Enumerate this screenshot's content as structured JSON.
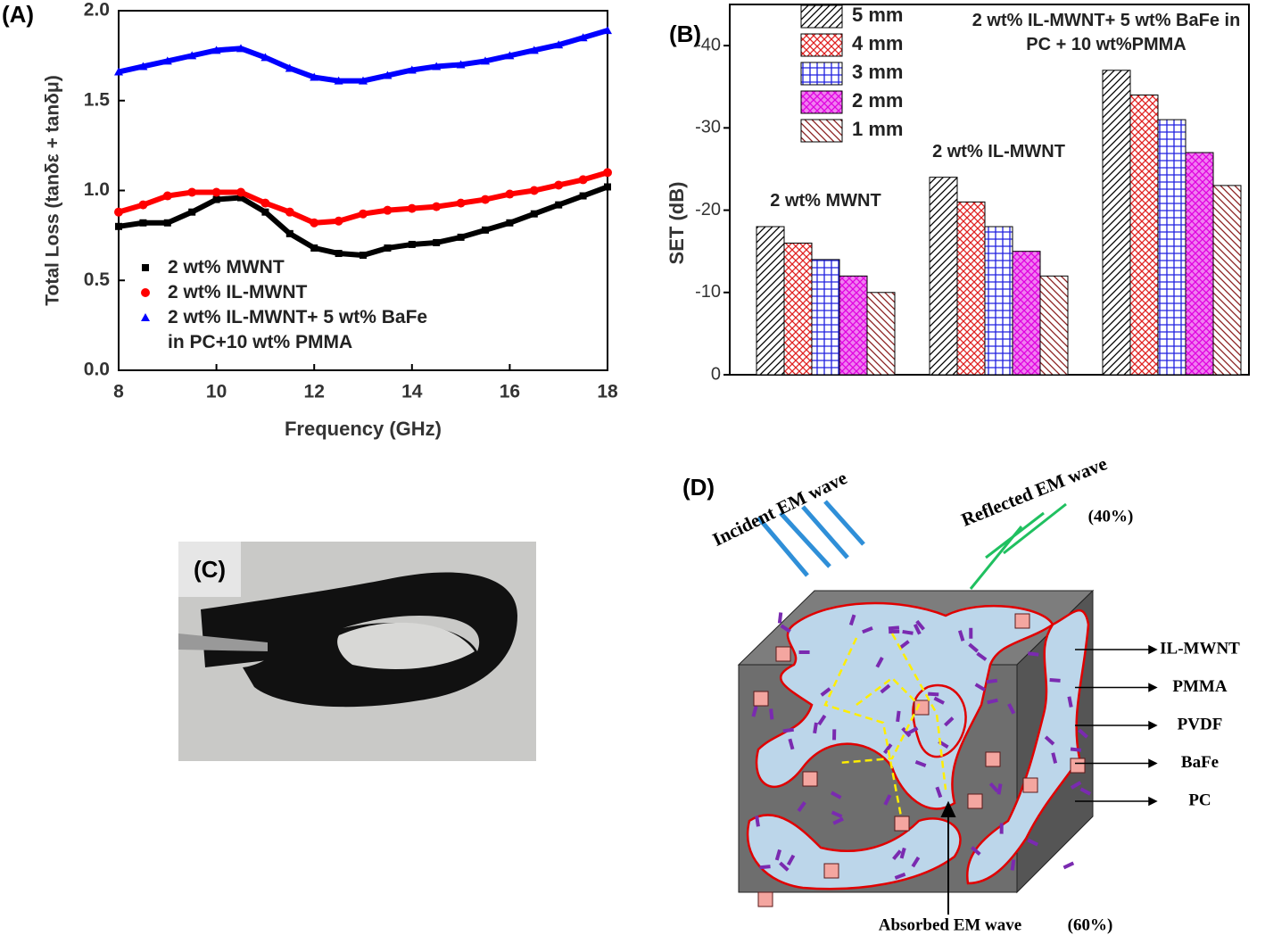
{
  "chart_data": [
    {
      "type": "line",
      "panel_label": "(A)",
      "x_label": "Frequency (GHz)",
      "y_label": "Total Loss (tanδε + tanδμ)",
      "x": [
        8,
        8.5,
        9,
        9.5,
        10,
        10.5,
        11,
        11.5,
        12,
        12.5,
        13,
        13.5,
        14,
        14.5,
        15,
        15.5,
        16,
        16.5,
        17,
        17.5,
        18
      ],
      "series": [
        {
          "name": "2 wt% MWNT",
          "color": "#000000",
          "marker": "square",
          "values": [
            0.8,
            0.82,
            0.82,
            0.88,
            0.95,
            0.96,
            0.88,
            0.76,
            0.68,
            0.65,
            0.64,
            0.68,
            0.7,
            0.71,
            0.74,
            0.78,
            0.82,
            0.87,
            0.92,
            0.97,
            1.02
          ]
        },
        {
          "name": "2 wt% IL-MWNT",
          "color": "#ff0000",
          "marker": "circle",
          "values": [
            0.88,
            0.92,
            0.97,
            0.99,
            0.99,
            0.99,
            0.93,
            0.88,
            0.82,
            0.83,
            0.87,
            0.89,
            0.9,
            0.91,
            0.93,
            0.95,
            0.98,
            1.0,
            1.03,
            1.06,
            1.1
          ]
        },
        {
          "name": "2 wt% IL-MWNT+ 5 wt% BaFe in PC+10 wt% PMMA",
          "color": "#0000ff",
          "marker": "triangle",
          "values": [
            1.66,
            1.69,
            1.72,
            1.75,
            1.78,
            1.79,
            1.74,
            1.68,
            1.63,
            1.61,
            1.61,
            1.64,
            1.67,
            1.69,
            1.7,
            1.72,
            1.75,
            1.78,
            1.81,
            1.85,
            1.89
          ]
        }
      ],
      "xlim": [
        8,
        18
      ],
      "xticks": [
        8,
        10,
        12,
        14,
        16,
        18
      ],
      "ylim": [
        0,
        2
      ],
      "yticks": [
        {
          "value": 0,
          "label": "0.0"
        },
        {
          "value": 0.5,
          "label": "0.5"
        },
        {
          "value": 1,
          "label": "1.0"
        },
        {
          "value": 1.5,
          "label": "1.5"
        },
        {
          "value": 2,
          "label": "2.0"
        }
      ]
    },
    {
      "type": "bar",
      "panel_label": "(B)",
      "y_label": "SET (dB)",
      "categories": [
        "2 wt% MWNT",
        "2 wt% IL-MWNT",
        "2 wt% IL-MWNT+ 5 wt% BaFe in PC + 10 wt%PMMA"
      ],
      "series": [
        {
          "name": "5 mm",
          "color": "#000000",
          "hatch": "diagonal",
          "values": [
            -18,
            -24,
            -37
          ]
        },
        {
          "name": "4 mm",
          "color": "#e02020",
          "hatch": "cross",
          "values": [
            -16,
            -21,
            -34
          ]
        },
        {
          "name": "3 mm",
          "color": "#2020e0",
          "hatch": "grid",
          "values": [
            -14,
            -18,
            -31
          ]
        },
        {
          "name": "2 mm",
          "color": "#e000e0",
          "hatch": "cross",
          "values": [
            -12,
            -15,
            -27
          ]
        },
        {
          "name": "1 mm",
          "color": "#8b2020",
          "hatch": "back-diagonal",
          "values": [
            -10,
            -12,
            -23
          ]
        }
      ],
      "ylim": [
        0,
        -45
      ],
      "yticks": [
        0,
        -10,
        -20,
        -30,
        -40
      ]
    }
  ],
  "photo": {
    "label": "(C)"
  },
  "diagram": {
    "label": "(D)",
    "incident": "Incident EM wave",
    "reflected": "Reflected EM wave",
    "reflected_share": "(40%)",
    "absorbed": "Absorbed EM wave",
    "absorbed_share": "(60%)",
    "components": [
      "IL-MWNT",
      "PMMA",
      "PVDF",
      "BaFe",
      "PC"
    ]
  }
}
